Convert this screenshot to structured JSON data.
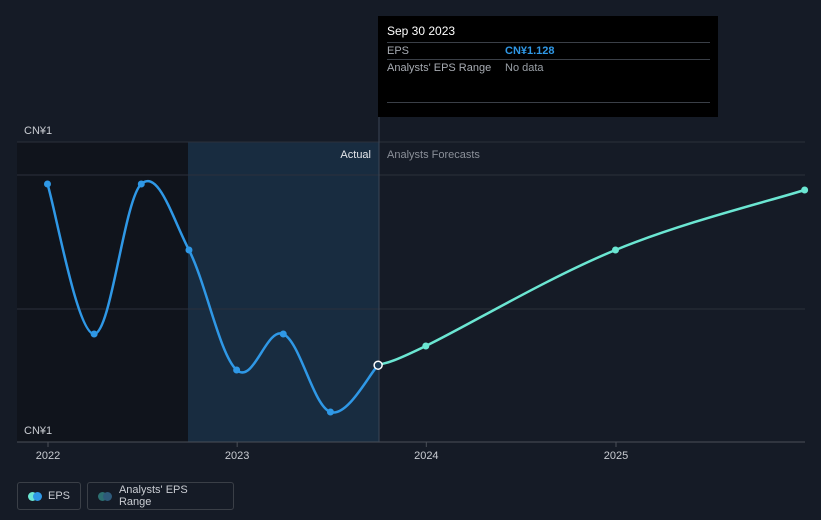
{
  "chart_data": {
    "type": "line",
    "y_axis_labels": [
      "CN¥1",
      "CN¥1"
    ],
    "x_ticks": [
      {
        "label": "2022",
        "date": "2022-01-01"
      },
      {
        "label": "2023",
        "date": "2023-01-01"
      },
      {
        "label": "2024",
        "date": "2024-01-01"
      },
      {
        "label": "2025",
        "date": "2025-01-01"
      }
    ],
    "region_labels": {
      "actual": "Actual",
      "forecast": "Analysts Forecasts"
    },
    "series": [
      {
        "name": "EPS",
        "color": "#2f98e6",
        "points": [
          {
            "date": "2021-12-31",
            "value": 1.43
          },
          {
            "date": "2022-03-31",
            "value": 1.18
          },
          {
            "date": "2022-06-30",
            "value": 1.43
          },
          {
            "date": "2022-09-30",
            "value": 1.32
          },
          {
            "date": "2022-12-31",
            "value": 1.12
          },
          {
            "date": "2023-03-31",
            "value": 1.18
          },
          {
            "date": "2023-06-30",
            "value": 1.05
          },
          {
            "date": "2023-09-30",
            "value": 1.128
          }
        ]
      },
      {
        "name": "EPS forecast",
        "color": "#6be6d2",
        "points": [
          {
            "date": "2023-09-30",
            "value": 1.128
          },
          {
            "date": "2023-12-31",
            "value": 1.16
          },
          {
            "date": "2024-12-31",
            "value": 1.32
          },
          {
            "date": "2025-12-31",
            "value": 1.42
          }
        ]
      }
    ],
    "ylim": [
      1.0,
      1.5
    ],
    "grid": true
  },
  "tooltip": {
    "date": "Sep 30 2023",
    "rows": [
      {
        "label": "EPS",
        "value": "CN¥1.128"
      },
      {
        "label": "Analysts' EPS Range",
        "value": "No data"
      }
    ]
  },
  "legend": {
    "eps_label": "EPS",
    "range_label": "Analysts' EPS Range",
    "eps_colors": [
      "#6be6d2",
      "#2f98e6"
    ],
    "range_colors": [
      "#2c6f71",
      "#2e5a7a"
    ]
  }
}
